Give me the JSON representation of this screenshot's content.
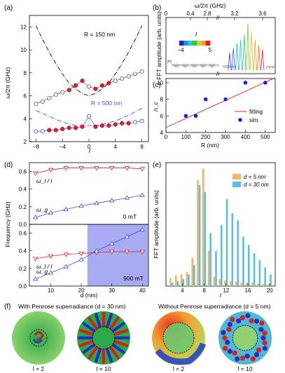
{
  "panel_labels": {
    "a": "(a)",
    "b": "(b)",
    "c": "(c)",
    "d": "(d)",
    "e": "(e)",
    "f": "(f)"
  },
  "chart_data": [
    {
      "id": "a",
      "type": "line",
      "xlabel": "l",
      "ylabel": "ω/2π (GHz)",
      "xlim": [
        -9,
        9
      ],
      "ylim": [
        2,
        13
      ],
      "xticks": [
        -8,
        -4,
        0,
        4,
        8
      ],
      "yticks": [
        2,
        4,
        6,
        8,
        10,
        12
      ],
      "annotations": [
        "R = 150 nm",
        "R = 500 nm"
      ],
      "series": [
        {
          "color": "#000000",
          "style": "dashdot",
          "x": [
            -8,
            -7,
            -6,
            -5,
            -4,
            -3,
            -2,
            -1,
            0,
            1,
            2,
            3,
            4,
            5,
            6,
            7,
            8
          ],
          "y": [
            12.1,
            10.9,
            9.8,
            8.8,
            7.9,
            7.1,
            6.6,
            6.2,
            6.0,
            6.2,
            6.6,
            7.1,
            7.9,
            8.8,
            9.8,
            10.9,
            12.1
          ]
        },
        {
          "color": "#555555",
          "marker": "circle-open",
          "x": [
            -8,
            -7,
            -6,
            -5,
            -4,
            -3,
            -2,
            -1,
            0,
            1,
            2,
            3,
            4,
            5,
            6,
            7,
            8
          ],
          "y": [
            5.3,
            5.5,
            5.8,
            6.1,
            6.3,
            6.5,
            6.9,
            7.3,
            6.8,
            6.6,
            6.9,
            7.1,
            7.3,
            7.5,
            7.7,
            7.9,
            8.1
          ]
        },
        {
          "color": "#e0202a",
          "marker": "circle-filled",
          "x": [
            -3,
            -2,
            -1,
            1,
            2,
            3
          ],
          "y": [
            6.5,
            6.9,
            7.3,
            6.6,
            6.9,
            7.1
          ]
        },
        {
          "color": "#3f4fd1",
          "style": "dashdot",
          "x": [
            -8,
            -6,
            -4,
            -2,
            -1,
            0,
            1,
            2,
            4,
            6,
            8
          ],
          "y": [
            4.7,
            4.2,
            3.7,
            3.4,
            3.4,
            3.4,
            3.4,
            3.5,
            3.8,
            4.3,
            4.9
          ]
        },
        {
          "color": "#3f4fd1",
          "marker": "circle-open",
          "x": [
            -8,
            -7,
            -6,
            -5,
            -4,
            -3,
            -2,
            -1,
            0,
            1,
            2,
            3,
            4,
            5,
            6,
            7,
            8
          ],
          "y": [
            2.9,
            2.9,
            3.0,
            3.0,
            3.1,
            3.2,
            3.2,
            3.3,
            4.2,
            3.3,
            3.4,
            3.4,
            3.5,
            3.6,
            3.6,
            3.7,
            3.8
          ]
        },
        {
          "color": "#e0202a",
          "marker": "circle-filled",
          "x": [
            -6,
            -5,
            -4,
            -3,
            -2,
            -1,
            1,
            2,
            3,
            4,
            5,
            6
          ],
          "y": [
            3.0,
            3.0,
            3.1,
            3.2,
            3.2,
            3.3,
            3.3,
            3.4,
            3.4,
            3.5,
            3.6,
            3.6
          ]
        }
      ]
    },
    {
      "id": "b",
      "type": "line",
      "xlabel_top": "ω/2π (GHz)",
      "xticks_top_left": [
        "0",
        "0.4",
        "2.8"
      ],
      "xticks_top_right": [
        "3.2",
        "3.6"
      ],
      "ylabel": "FFT amplitude (arb. units)",
      "colorbar": {
        "title": "l",
        "min": "−4",
        "max": "5",
        "colors": [
          "#2020c0",
          "#1e90ff",
          "#20d0d0",
          "#40c040",
          "#c8d820",
          "#f8a020",
          "#e02020"
        ]
      },
      "peaks_color": [
        "#3030c8",
        "#2070e0",
        "#20a8e0",
        "#20c8c0",
        "#30c070",
        "#80c830",
        "#d0c820",
        "#f0a020",
        "#f06020",
        "#e02020"
      ],
      "peaks_height": [
        0.35,
        0.45,
        0.55,
        0.62,
        0.72,
        0.95,
        0.78,
        0.62,
        0.5,
        0.42
      ]
    },
    {
      "id": "c",
      "type": "scatter",
      "xlabel": "R (nm)",
      "ylabel": "n_c",
      "xlim": [
        0,
        550
      ],
      "ylim": [
        4,
        10.5
      ],
      "xticks": [
        0,
        100,
        200,
        300,
        400,
        500
      ],
      "yticks": [
        4,
        6,
        8,
        10
      ],
      "legend": [
        "fitting",
        "sim."
      ],
      "fit": {
        "x": [
          0,
          550
        ],
        "y": [
          4.6,
          10.6
        ]
      },
      "x": [
        100,
        150,
        200,
        300,
        400,
        500
      ],
      "y": [
        6,
        6,
        8,
        8,
        10,
        10
      ]
    },
    {
      "id": "d",
      "type": "line",
      "xlabel": "d (nm)",
      "ylabel": "Frequency (GHz)",
      "xlim": [
        3,
        42
      ],
      "xticks": [
        10,
        20,
        30,
        40
      ],
      "top": {
        "field": "0 mT",
        "ylim": [
          0,
          0.7
        ],
        "yticks": [
          0.0,
          0.2,
          0.4,
          0.6
        ],
        "series": [
          {
            "name": "ω_l / l",
            "color": "#e0202a",
            "marker": "triangle-down",
            "x": [
              5,
              10,
              15,
              20,
              25,
              30,
              35,
              40
            ],
            "y": [
              0.58,
              0.62,
              0.64,
              0.64,
              0.64,
              0.64,
              0.64,
              0.63
            ]
          },
          {
            "name": "ω_g",
            "color": "#3f4fd1",
            "marker": "triangle-up",
            "x": [
              5,
              10,
              15,
              20,
              25,
              30,
              35,
              40
            ],
            "y": [
              0.08,
              0.13,
              0.17,
              0.21,
              0.24,
              0.27,
              0.3,
              0.33
            ]
          }
        ]
      },
      "bottom": {
        "field": "900 mT",
        "ylim": [
          0,
          0.7
        ],
        "yticks": [
          0.0,
          0.2,
          0.4,
          0.6
        ],
        "shade_from": 22,
        "series": [
          {
            "name": "ω_l / l",
            "color": "#e0202a",
            "marker": "triangle-down",
            "x": [
              5,
              10,
              15,
              20,
              25,
              30,
              35,
              40
            ],
            "y": [
              0.31,
              0.34,
              0.36,
              0.37,
              0.38,
              0.39,
              0.39,
              0.39
            ]
          },
          {
            "name": "ω_g",
            "color": "#3f4fd1",
            "marker": "triangle-up",
            "x": [
              5,
              10,
              15,
              20,
              25,
              30,
              35,
              40
            ],
            "y": [
              0.08,
              0.15,
              0.22,
              0.3,
              0.4,
              0.48,
              0.56,
              0.64
            ]
          }
        ]
      }
    },
    {
      "id": "e",
      "type": "bar",
      "xlabel": "l",
      "ylabel": "FFT amplitude (arb. units)",
      "xlim": [
        1,
        21
      ],
      "xticks": [
        4,
        8,
        12,
        16,
        20
      ],
      "ylim": [
        0,
        1.05
      ],
      "series": [
        {
          "name": "d = 5 nm",
          "color": "#f6b26b",
          "x": [
            2,
            3,
            4,
            5,
            6,
            7,
            8,
            9,
            10,
            11,
            12,
            13,
            14,
            15,
            16,
            17,
            18,
            19,
            20
          ],
          "y": [
            0.07,
            0.09,
            0.1,
            0.12,
            0.24,
            0.9,
            1.0,
            0.3,
            0.08,
            0.06,
            0.05,
            0.04,
            0.04,
            0.03,
            0.03,
            0.03,
            0.02,
            0.02,
            0.02
          ]
        },
        {
          "name": "d = 30 nm",
          "color": "#5bc0de",
          "x": [
            2,
            3,
            4,
            5,
            6,
            7,
            8,
            9,
            10,
            11,
            12,
            13,
            14,
            15,
            16,
            17,
            18,
            19,
            20
          ],
          "y": [
            0.03,
            0.04,
            0.06,
            0.1,
            0.18,
            0.86,
            0.8,
            0.45,
            0.3,
            0.52,
            0.74,
            0.62,
            0.56,
            0.42,
            0.35,
            0.28,
            0.22,
            0.16,
            0.1
          ]
        }
      ]
    }
  ],
  "panel_f": {
    "left_title": "With Penrose superradiance (d = 30 nm)",
    "right_title": "Without Penrose superradiance (d = 5 nm)",
    "labels": [
      "l = 2",
      "l = 10",
      "l = 2",
      "l = 10"
    ]
  }
}
